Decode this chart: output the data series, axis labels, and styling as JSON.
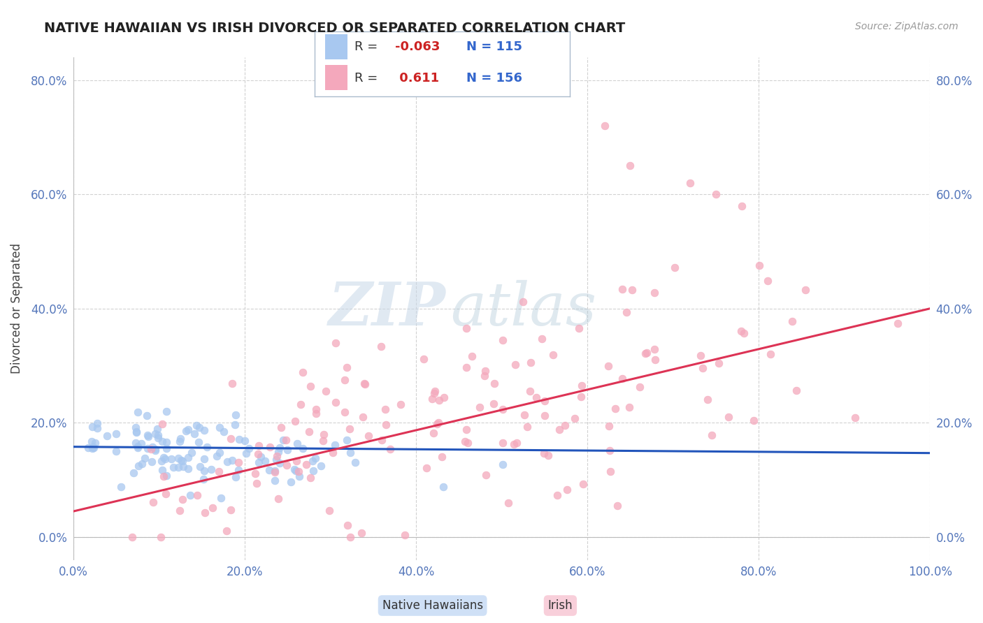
{
  "title": "NATIVE HAWAIIAN VS IRISH DIVORCED OR SEPARATED CORRELATION CHART",
  "source_text": "Source: ZipAtlas.com",
  "ylabel": "Divorced or Separated",
  "legend_label_1": "Native Hawaiians",
  "legend_label_2": "Irish",
  "r1": -0.063,
  "n1": 115,
  "r2": 0.611,
  "n2": 156,
  "xlim": [
    0.0,
    1.0
  ],
  "ylim": [
    -0.04,
    0.84
  ],
  "xticks": [
    0.0,
    0.2,
    0.4,
    0.6,
    0.8,
    1.0
  ],
  "yticks": [
    0.0,
    0.2,
    0.4,
    0.6,
    0.8
  ],
  "ytick_labels": [
    "0.0%",
    "20.0%",
    "40.0%",
    "60.0%",
    "80.0%"
  ],
  "xtick_labels": [
    "0.0%",
    "20.0%",
    "40.0%",
    "60.0%",
    "80.0%",
    "100.0%"
  ],
  "color1": "#A8C8F0",
  "color2": "#F4A8BC",
  "line_color1": "#2255BB",
  "line_color2": "#DD3355",
  "watermark_zip": "ZIP",
  "watermark_atlas": "atlas",
  "background_color": "#FFFFFF",
  "grid_color": "#CCCCCC",
  "title_color": "#222222",
  "axis_label_color": "#444444",
  "tick_label_color": "#5577BB",
  "legend_border_color": "#AABBCC"
}
